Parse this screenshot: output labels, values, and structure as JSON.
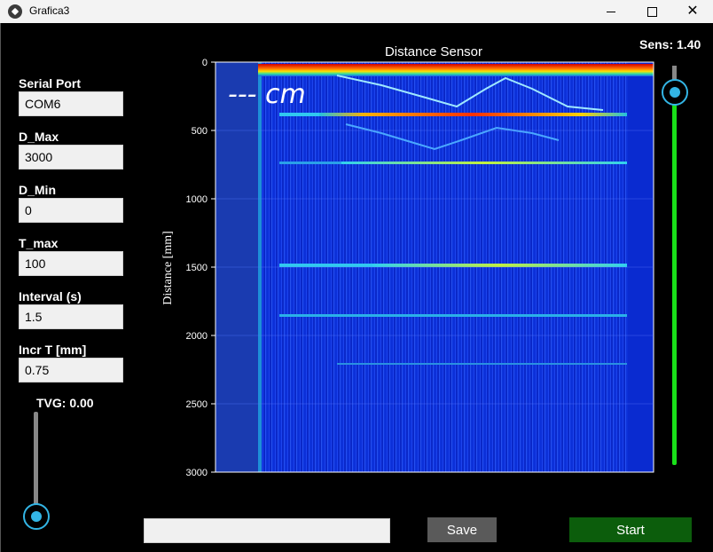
{
  "window": {
    "title": "Grafica3"
  },
  "fields": [
    {
      "label": "Serial Port",
      "value": "COM6"
    },
    {
      "label": "D_Max",
      "value": "3000"
    },
    {
      "label": "D_Min",
      "value": "0"
    },
    {
      "label": "T_max",
      "value": "100"
    },
    {
      "label": "Interval (s)",
      "value": "1.5"
    },
    {
      "label": "Incr T [mm]",
      "value": "0.75"
    }
  ],
  "sens": {
    "label": "Sens: 1.40",
    "value": 1.4
  },
  "tvg": {
    "label": "TVG: 0.00",
    "value": 0.0
  },
  "overlay": {
    "distance_text": "--- cm"
  },
  "chart_data": {
    "type": "heatmap",
    "title": "Distance Sensor",
    "ylabel": "Distance [mm]",
    "xlabel": "",
    "ylim": [
      0,
      3000
    ],
    "yticks": [
      "0",
      "500",
      "1000",
      "1500",
      "2000",
      "2500",
      "3000"
    ],
    "echo_bands_mm": [
      20,
      380,
      740,
      1490,
      1850,
      2210
    ],
    "colors": {
      "background": "#0a2bd0",
      "low": "#1a3ae6",
      "mid": "#24c0e0",
      "high": "#ffe000",
      "peak": "#e01010"
    }
  },
  "buttons": {
    "save": "Save",
    "start": "Start"
  },
  "colors": {
    "slider_green": "#19e019",
    "slider_knob": "#33b5e5",
    "start_bg": "#0c5d0c",
    "save_bg": "#5a5a5a"
  }
}
